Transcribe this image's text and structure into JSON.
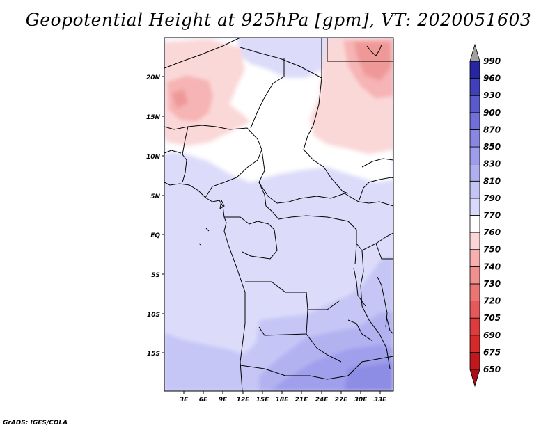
{
  "title": "Geopotential Height at 925hPa [gpm], VT: 2020051603",
  "footer": "GrADS: IGES/COLA",
  "map": {
    "variable": "Geopotential Height",
    "level": "925hPa",
    "units": "gpm",
    "valid_time": "2020051603",
    "lat_labels": [
      "20N",
      "15N",
      "10N",
      "5N",
      "EQ",
      "5S",
      "10S",
      "15S"
    ],
    "lon_labels": [
      "3E",
      "6E",
      "9E",
      "12E",
      "15E",
      "18E",
      "21E",
      "24E",
      "27E",
      "30E",
      "33E"
    ]
  },
  "colorbar": {
    "levels": [
      "650",
      "675",
      "690",
      "705",
      "720",
      "730",
      "740",
      "750",
      "760",
      "770",
      "790",
      "810",
      "830",
      "850",
      "870",
      "900",
      "930",
      "960",
      "990"
    ],
    "colors": [
      "#a50f15",
      "#c0181d",
      "#d42a2a",
      "#dc3c3c",
      "#e45a5a",
      "#eb7575",
      "#f19090",
      "#f6b0b0",
      "#fbd6d6",
      "#ffffff",
      "#d9d9fb",
      "#c4c4f5",
      "#b0b0f0",
      "#9d9deb",
      "#8888e2",
      "#7070d8",
      "#5a5acb",
      "#4040b8",
      "#2626a0",
      "#10108a"
    ],
    "top_arrow_color": "#a0a0a0"
  }
}
